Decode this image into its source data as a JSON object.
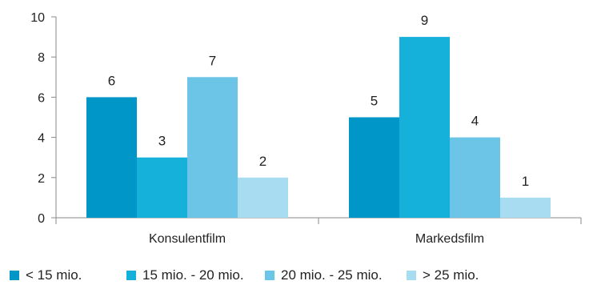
{
  "chart_data": {
    "type": "bar",
    "categories": [
      "Konsulentfilm",
      "Markedsfilm"
    ],
    "series": [
      {
        "name": "< 15 mio.",
        "values": [
          6,
          5
        ],
        "color": "#0097c8"
      },
      {
        "name": "15 mio. - 20 mio.",
        "values": [
          3,
          9
        ],
        "color": "#15b1da"
      },
      {
        "name": "20 mio. - 25 mio.",
        "values": [
          7,
          4
        ],
        "color": "#6cc5e6"
      },
      {
        "name": "> 25 mio.",
        "values": [
          2,
          1
        ],
        "color": "#a8dcf0"
      }
    ],
    "ylim": [
      0,
      10
    ],
    "yticks": [
      0,
      2,
      4,
      6,
      8,
      10
    ],
    "grid": false,
    "legend_position": "bottom",
    "title": "",
    "xlabel": "",
    "ylabel": ""
  }
}
